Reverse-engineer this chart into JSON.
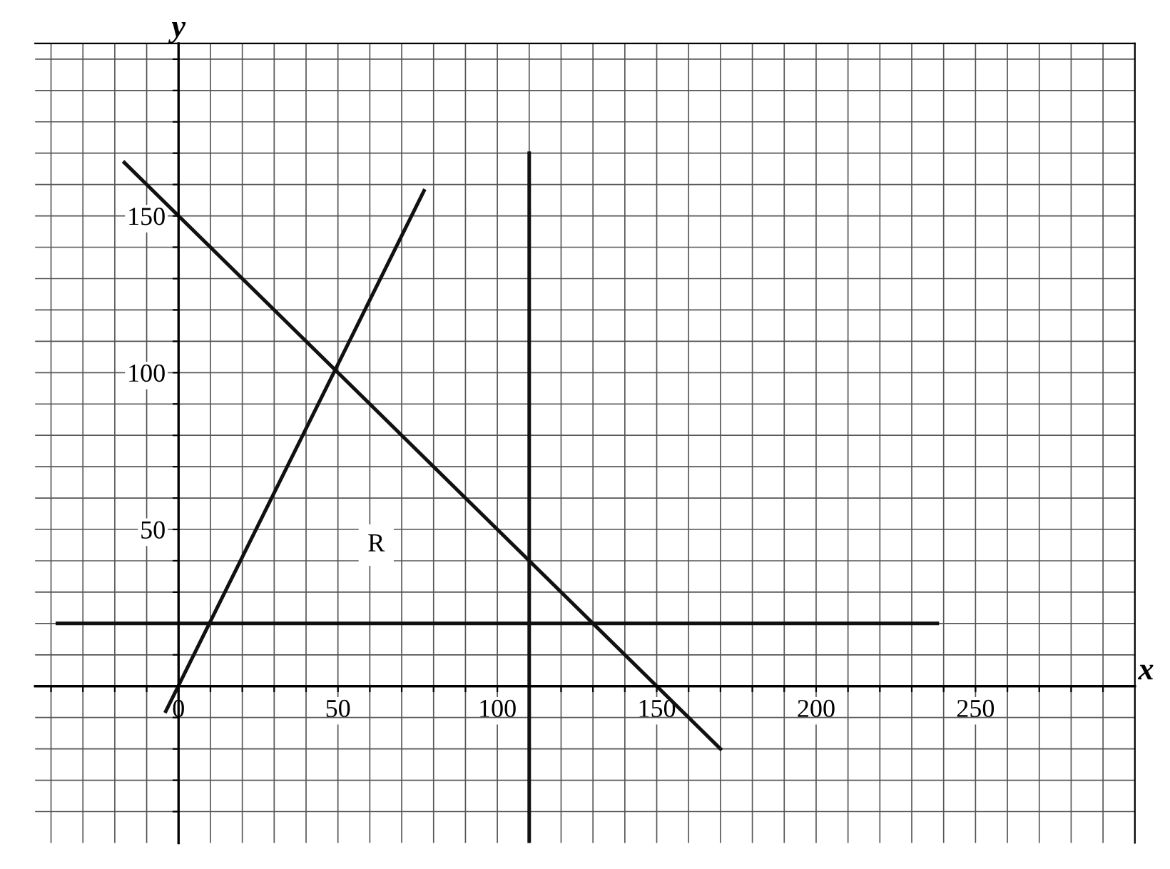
{
  "chart_data": {
    "type": "line",
    "xlabel": "x",
    "ylabel": "y",
    "xlim": [
      -45,
      300
    ],
    "ylim": [
      -50,
      205
    ],
    "xticks": [
      {
        "value": -40,
        "label": null
      },
      {
        "value": -30,
        "label": null
      },
      {
        "value": -20,
        "label": null
      },
      {
        "value": -10,
        "label": null
      },
      0,
      {
        "value": 10,
        "label": null
      },
      {
        "value": 20,
        "label": null
      },
      {
        "value": 30,
        "label": null
      },
      {
        "value": 40,
        "label": null
      },
      50,
      {
        "value": 60,
        "label": null
      },
      {
        "value": 70,
        "label": null
      },
      {
        "value": 80,
        "label": null
      },
      {
        "value": 90,
        "label": null
      },
      100,
      {
        "value": 110,
        "label": null
      },
      {
        "value": 120,
        "label": null
      },
      {
        "value": 130,
        "label": null
      },
      {
        "value": 140,
        "label": null
      },
      150,
      {
        "value": 160,
        "label": null
      },
      {
        "value": 170,
        "label": null
      },
      {
        "value": 180,
        "label": null
      },
      {
        "value": 190,
        "label": null
      },
      200,
      {
        "value": 210,
        "label": null
      },
      {
        "value": 220,
        "label": null
      },
      {
        "value": 230,
        "label": null
      },
      {
        "value": 240,
        "label": null
      },
      250,
      {
        "value": 260,
        "label": null
      },
      {
        "value": 270,
        "label": null
      },
      {
        "value": 280,
        "label": null
      },
      {
        "value": 290,
        "label": null
      }
    ],
    "yticks": [
      {
        "value": -40,
        "label": null
      },
      {
        "value": -30,
        "label": null
      },
      {
        "value": -20,
        "label": null
      },
      {
        "value": -10,
        "label": null
      },
      {
        "value": 10,
        "label": null
      },
      {
        "value": 20,
        "label": null
      },
      {
        "value": 30,
        "label": null
      },
      {
        "value": 40,
        "label": null
      },
      50,
      {
        "value": 60,
        "label": null
      },
      {
        "value": 70,
        "label": null
      },
      {
        "value": 80,
        "label": null
      },
      {
        "value": 90,
        "label": null
      },
      100,
      {
        "value": 110,
        "label": null
      },
      {
        "value": 120,
        "label": null
      },
      {
        "value": 130,
        "label": null
      },
      {
        "value": 140,
        "label": null
      },
      150,
      {
        "value": 160,
        "label": null
      },
      {
        "value": 170,
        "label": null
      },
      {
        "value": 180,
        "label": null
      },
      {
        "value": 190,
        "label": null
      },
      {
        "value": 200,
        "label": null
      }
    ],
    "grid": true,
    "legend": false,
    "marker": "none",
    "line_style": "solid",
    "series": [
      {
        "color": "#111111",
        "x": [
          -38,
          238
        ],
        "values": [
          20,
          20
        ]
      },
      {
        "color": "#111111",
        "x": [
          110,
          110
        ],
        "values": [
          170,
          -50
        ]
      },
      {
        "color": "#111111",
        "x": [
          -17,
          170
        ],
        "values": [
          167,
          -20
        ]
      },
      {
        "color": "#111111",
        "x": [
          -4,
          77
        ],
        "values": [
          -8,
          158
        ]
      }
    ],
    "annotations": [
      {
        "text": "R",
        "x": 62,
        "y": 45
      }
    ]
  }
}
